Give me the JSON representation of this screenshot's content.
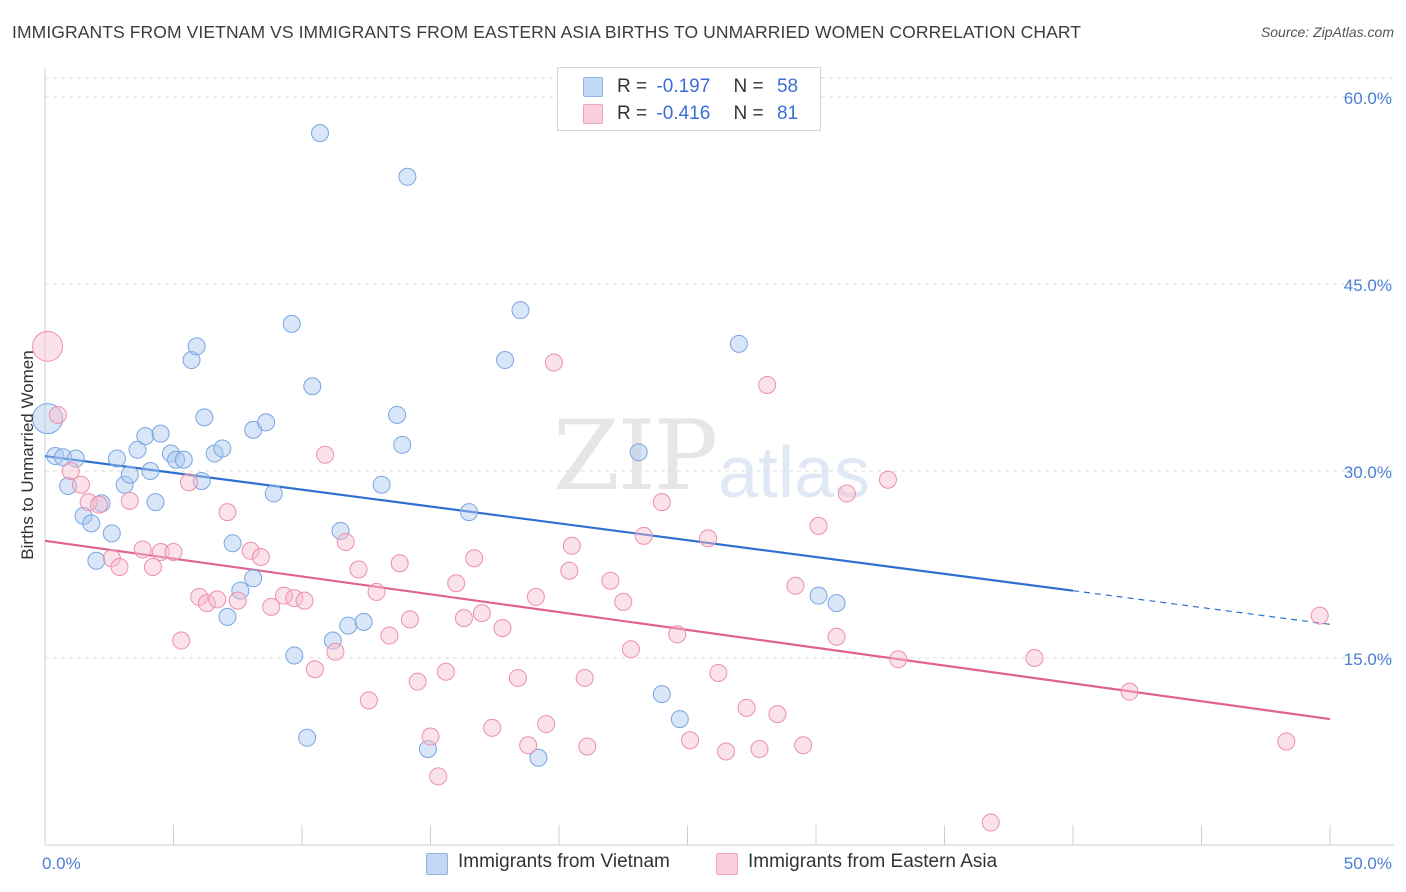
{
  "title": "IMMIGRANTS FROM VIETNAM VS IMMIGRANTS FROM EASTERN ASIA BIRTHS TO UNMARRIED WOMEN CORRELATION CHART",
  "source": "Source: ZipAtlas.com",
  "watermark": {
    "zip": "ZIP",
    "atlas": "atlas"
  },
  "legend": {
    "rows": [
      {
        "r_label": "R =",
        "r_value": "-0.197",
        "n_label": "N =",
        "n_value": "58",
        "color": "#aac8f0"
      },
      {
        "r_label": "R =",
        "r_value": "-0.416",
        "n_label": "N =",
        "n_value": "81",
        "color": "#f6bccd"
      }
    ]
  },
  "bottom_legend": {
    "vietnam": "Immigrants from Vietnam",
    "eastern_asia": "Immigrants from Eastern Asia"
  },
  "chart_data": {
    "type": "scatter",
    "title": "IMMIGRANTS FROM VIETNAM VS IMMIGRANTS FROM EASTERN ASIA BIRTHS TO UNMARRIED WOMEN CORRELATION CHART",
    "xlabel": "",
    "ylabel": "Births to Unmarried Women",
    "xlim": [
      0,
      50
    ],
    "ylim": [
      0,
      60
    ],
    "x_tick_labels": [
      "0.0%",
      "50.0%"
    ],
    "y_ticks": [
      15,
      30,
      45,
      60
    ],
    "y_tick_labels": [
      "15.0%",
      "30.0%",
      "45.0%",
      "60.0%"
    ],
    "grid": "horizontal dashed",
    "legend_position": "top-center",
    "colors": {
      "vietnam": "#6fa0e0",
      "eastern_asia": "#ec7fa4",
      "vietnam_line": "#2e6fd1",
      "eastern_asia_line": "#e0628f"
    },
    "series": [
      {
        "name": "Immigrants from Vietnam",
        "r": -0.197,
        "n": 58,
        "trend": {
          "x0": 0,
          "y0": 31.2,
          "x1": 40,
          "y1": 20.4,
          "dashed_to_x": 50,
          "dashed_to_y": 17.7
        },
        "points": [
          [
            0.1,
            34.2
          ],
          [
            0.4,
            31.2
          ],
          [
            0.7,
            31.1
          ],
          [
            0.9,
            28.8
          ],
          [
            1.2,
            31.0
          ],
          [
            1.5,
            26.4
          ],
          [
            1.8,
            25.8
          ],
          [
            2.0,
            22.8
          ],
          [
            2.2,
            27.4
          ],
          [
            2.6,
            25.0
          ],
          [
            2.8,
            31.0
          ],
          [
            3.1,
            28.9
          ],
          [
            3.3,
            29.7
          ],
          [
            3.6,
            31.7
          ],
          [
            3.9,
            32.8
          ],
          [
            4.1,
            30.0
          ],
          [
            4.3,
            27.5
          ],
          [
            4.5,
            33.0
          ],
          [
            4.9,
            31.4
          ],
          [
            5.1,
            30.9
          ],
          [
            5.4,
            30.9
          ],
          [
            5.7,
            38.9
          ],
          [
            5.9,
            40.0
          ],
          [
            6.1,
            29.2
          ],
          [
            6.2,
            34.3
          ],
          [
            6.6,
            31.4
          ],
          [
            6.9,
            31.8
          ],
          [
            7.3,
            24.2
          ],
          [
            7.6,
            20.4
          ],
          [
            7.1,
            18.3
          ],
          [
            8.1,
            21.4
          ],
          [
            8.1,
            33.3
          ],
          [
            8.6,
            33.9
          ],
          [
            8.9,
            28.2
          ],
          [
            9.6,
            41.8
          ],
          [
            9.7,
            15.2
          ],
          [
            10.2,
            8.6
          ],
          [
            10.4,
            36.8
          ],
          [
            10.7,
            57.1
          ],
          [
            11.2,
            16.4
          ],
          [
            11.5,
            25.2
          ],
          [
            11.8,
            17.6
          ],
          [
            12.4,
            17.9
          ],
          [
            13.1,
            28.9
          ],
          [
            13.7,
            34.5
          ],
          [
            13.9,
            32.1
          ],
          [
            14.1,
            53.6
          ],
          [
            14.9,
            7.7
          ],
          [
            16.5,
            26.7
          ],
          [
            17.9,
            38.9
          ],
          [
            18.5,
            42.9
          ],
          [
            19.2,
            7.0
          ],
          [
            23.1,
            31.5
          ],
          [
            24.0,
            12.1
          ],
          [
            24.7,
            10.1
          ],
          [
            27.0,
            40.2
          ],
          [
            30.1,
            20.0
          ],
          [
            30.8,
            19.4
          ]
        ]
      },
      {
        "name": "Immigrants from Eastern Asia",
        "r": -0.416,
        "n": 81,
        "trend": {
          "x0": 0,
          "y0": 24.4,
          "x1": 50,
          "y1": 10.1
        },
        "points": [
          [
            0.1,
            40.0
          ],
          [
            0.5,
            34.5
          ],
          [
            1.0,
            30.0
          ],
          [
            1.4,
            28.9
          ],
          [
            1.7,
            27.5
          ],
          [
            2.1,
            27.3
          ],
          [
            2.6,
            23.0
          ],
          [
            2.9,
            22.3
          ],
          [
            3.3,
            27.6
          ],
          [
            3.8,
            23.7
          ],
          [
            4.2,
            22.3
          ],
          [
            4.5,
            23.5
          ],
          [
            5.0,
            23.5
          ],
          [
            5.3,
            16.4
          ],
          [
            5.6,
            29.1
          ],
          [
            6.0,
            19.9
          ],
          [
            6.3,
            19.4
          ],
          [
            6.7,
            19.7
          ],
          [
            7.1,
            26.7
          ],
          [
            7.5,
            19.6
          ],
          [
            8.0,
            23.6
          ],
          [
            8.4,
            23.1
          ],
          [
            8.8,
            19.1
          ],
          [
            9.3,
            20.0
          ],
          [
            9.7,
            19.8
          ],
          [
            10.1,
            19.6
          ],
          [
            10.5,
            14.1
          ],
          [
            10.9,
            31.3
          ],
          [
            11.3,
            15.5
          ],
          [
            11.7,
            24.3
          ],
          [
            12.2,
            22.1
          ],
          [
            12.6,
            11.6
          ],
          [
            12.9,
            20.3
          ],
          [
            13.4,
            16.8
          ],
          [
            13.8,
            22.6
          ],
          [
            14.2,
            18.1
          ],
          [
            14.5,
            13.1
          ],
          [
            15.0,
            8.7
          ],
          [
            15.3,
            5.5
          ],
          [
            15.6,
            13.9
          ],
          [
            16.0,
            21.0
          ],
          [
            16.3,
            18.2
          ],
          [
            16.7,
            23.0
          ],
          [
            17.0,
            18.6
          ],
          [
            17.4,
            9.4
          ],
          [
            17.8,
            17.4
          ],
          [
            18.4,
            13.4
          ],
          [
            18.8,
            8.0
          ],
          [
            19.1,
            19.9
          ],
          [
            19.5,
            9.7
          ],
          [
            19.8,
            38.7
          ],
          [
            20.4,
            22.0
          ],
          [
            20.5,
            24.0
          ],
          [
            21.0,
            13.4
          ],
          [
            21.1,
            7.9
          ],
          [
            22.0,
            21.2
          ],
          [
            22.5,
            19.5
          ],
          [
            22.8,
            15.7
          ],
          [
            23.3,
            24.8
          ],
          [
            24.0,
            27.5
          ],
          [
            24.6,
            16.9
          ],
          [
            25.1,
            8.4
          ],
          [
            25.8,
            24.6
          ],
          [
            26.2,
            13.8
          ],
          [
            26.5,
            7.5
          ],
          [
            27.3,
            11.0
          ],
          [
            27.8,
            7.7
          ],
          [
            28.1,
            36.9
          ],
          [
            28.5,
            10.5
          ],
          [
            29.2,
            20.8
          ],
          [
            29.5,
            8.0
          ],
          [
            30.1,
            25.6
          ],
          [
            30.8,
            16.7
          ],
          [
            31.2,
            28.2
          ],
          [
            32.8,
            29.3
          ],
          [
            33.2,
            14.9
          ],
          [
            36.8,
            1.8
          ],
          [
            38.5,
            15.0
          ],
          [
            42.2,
            12.3
          ],
          [
            48.3,
            8.3
          ],
          [
            49.6,
            18.4
          ]
        ]
      }
    ]
  }
}
